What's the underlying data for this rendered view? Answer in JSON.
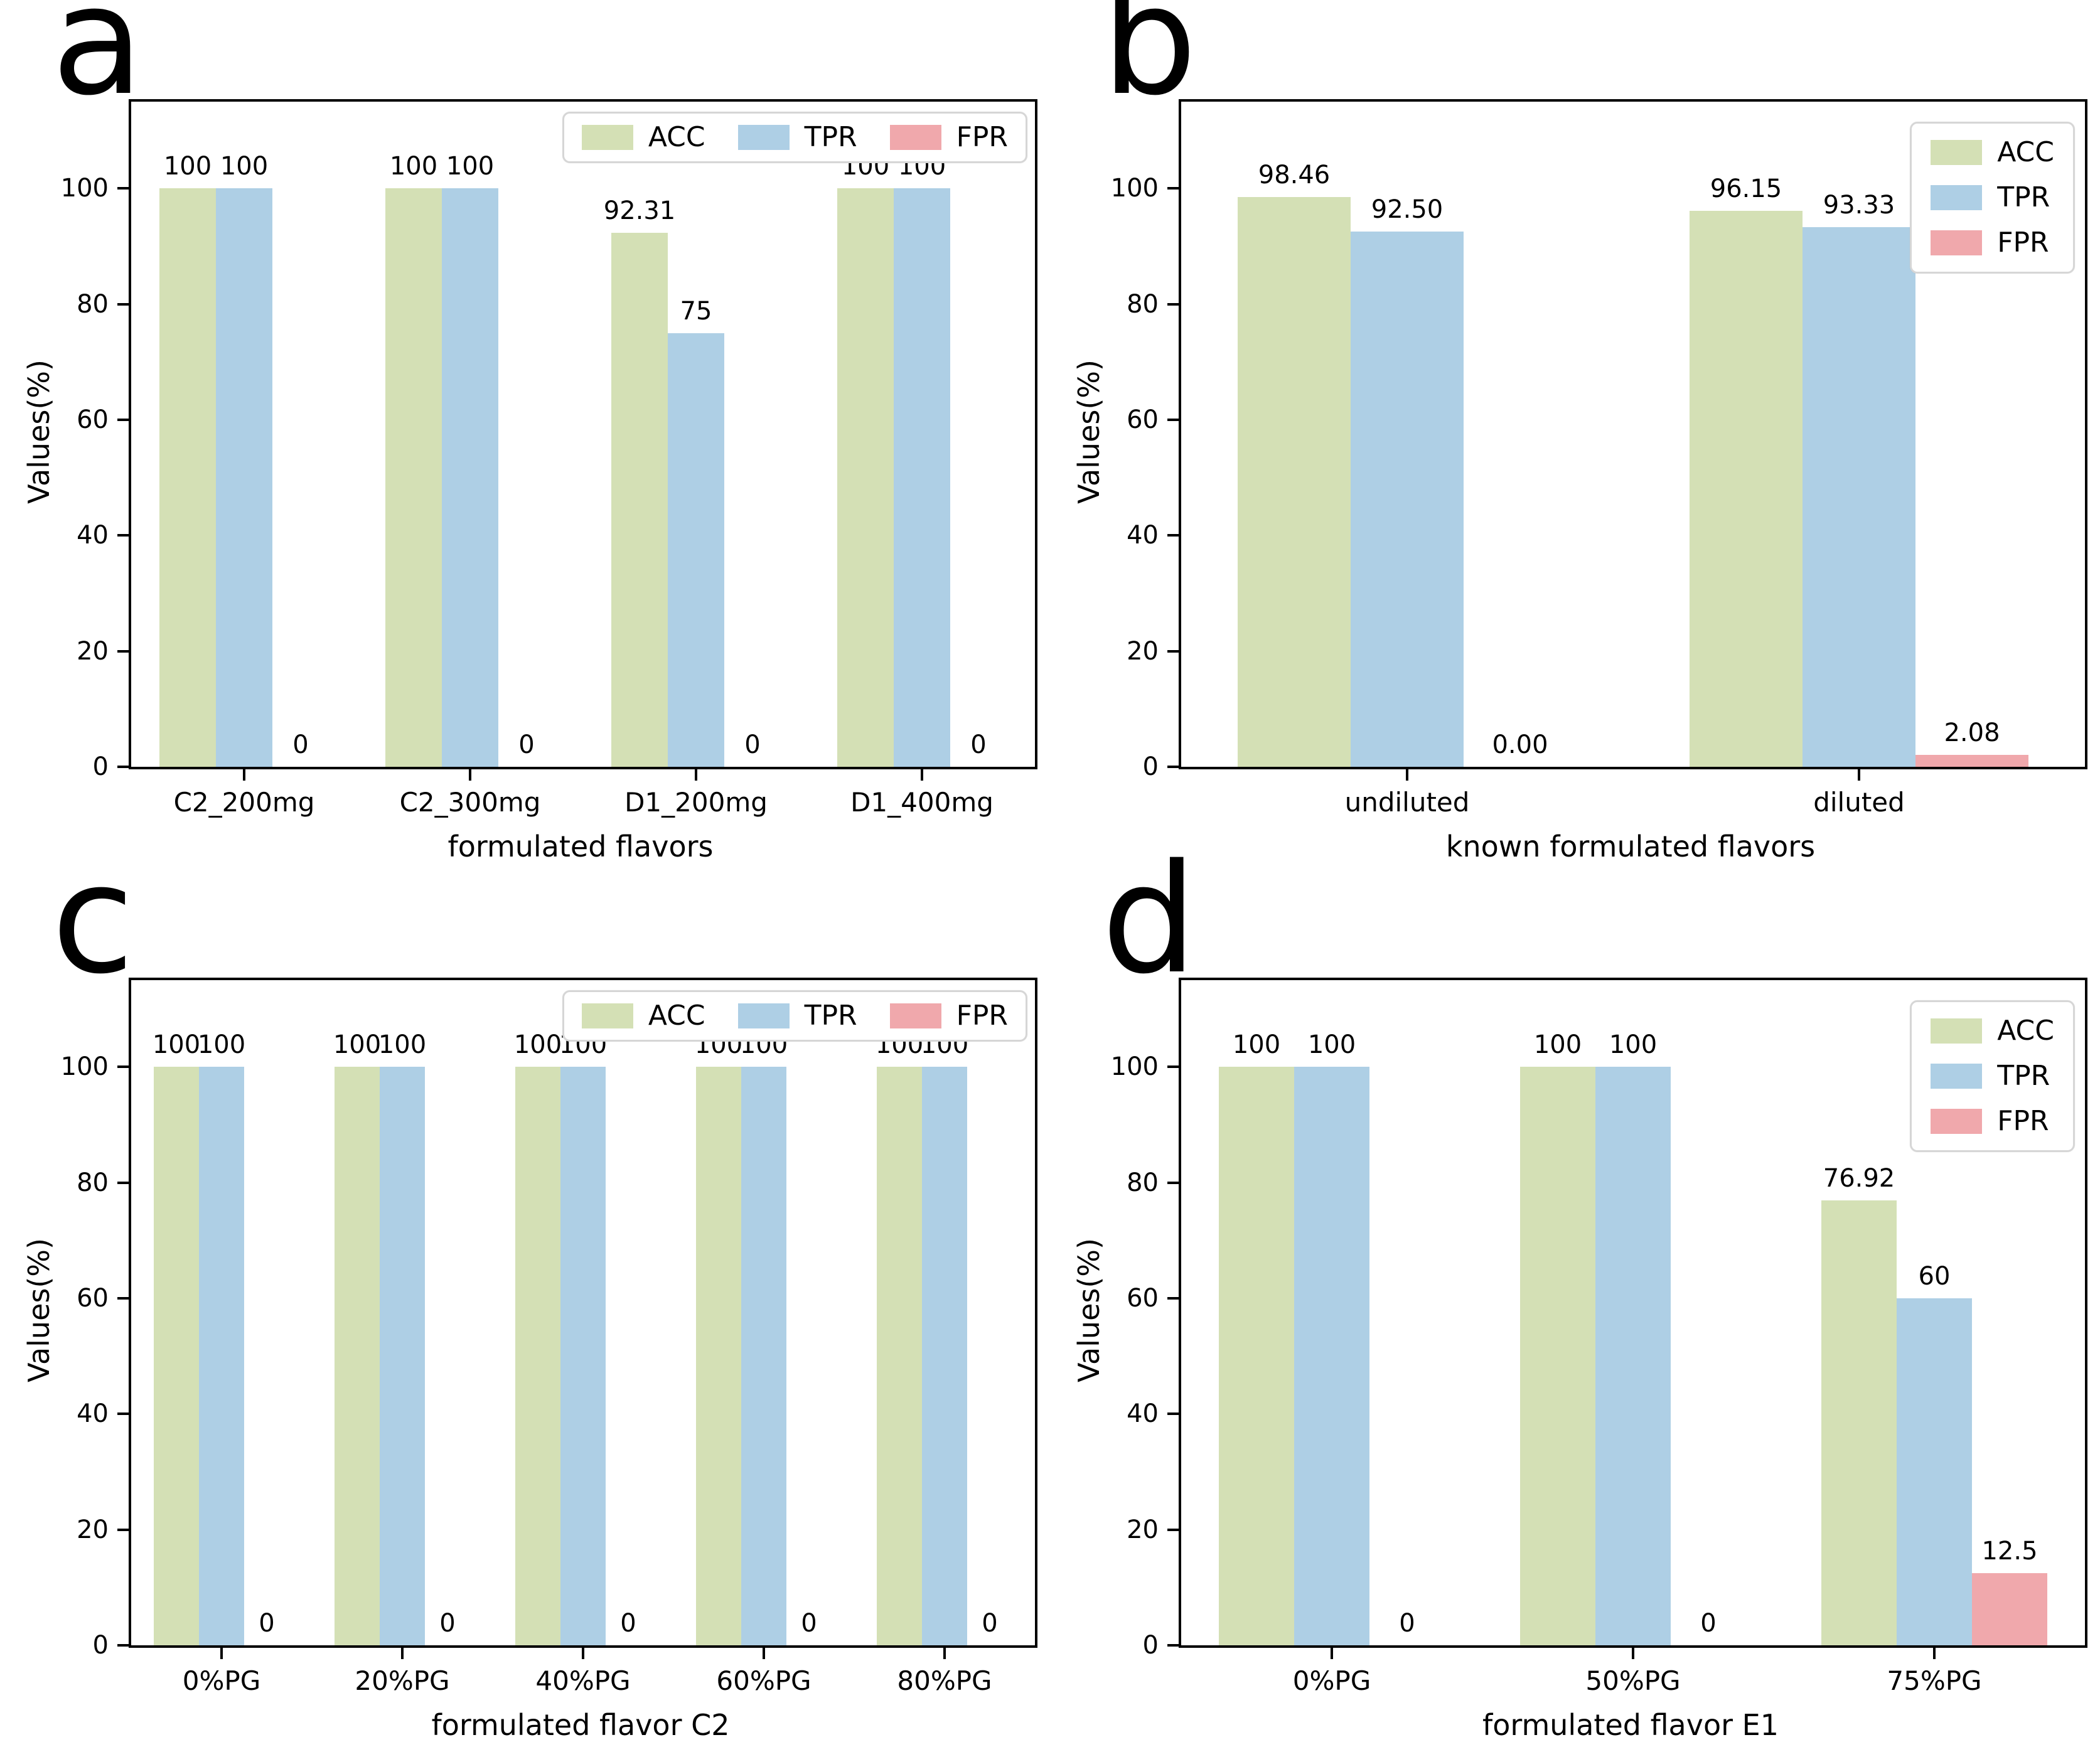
{
  "colors": {
    "ACC": "#d4e0b5",
    "TPR": "#aecfe5",
    "FPR": "#f0a8ac",
    "spine": "#000000",
    "text": "#000000",
    "legend_border": "#d6d6d6",
    "background": "#ffffff"
  },
  "chart_data": [
    {
      "panel_label": "a",
      "type": "bar",
      "title": "",
      "xlabel": "formulated flavors",
      "ylabel": "Values(%)",
      "ylim": [
        0,
        115
      ],
      "yticks": [
        0,
        20,
        40,
        60,
        80,
        100
      ],
      "grid": false,
      "legend": {
        "orientation": "horizontal",
        "position": "upper-right",
        "entries": [
          "ACC",
          "TPR",
          "FPR"
        ]
      },
      "categories": [
        "C2_200mg",
        "C2_300mg",
        "D1_200mg",
        "D1_400mg"
      ],
      "series": [
        {
          "name": "ACC",
          "values": [
            100,
            100,
            92.31,
            100
          ],
          "labels": [
            "100",
            "100",
            "92.31",
            "100"
          ]
        },
        {
          "name": "TPR",
          "values": [
            100,
            100,
            75,
            100
          ],
          "labels": [
            "100",
            "100",
            "75",
            "100"
          ]
        },
        {
          "name": "FPR",
          "values": [
            0,
            0,
            0,
            0
          ],
          "labels": [
            "0",
            "0",
            "0",
            "0"
          ]
        }
      ]
    },
    {
      "panel_label": "b",
      "type": "bar",
      "title": "",
      "xlabel": "known formulated flavors",
      "ylabel": "Values(%)",
      "ylim": [
        0,
        115
      ],
      "yticks": [
        0,
        20,
        40,
        60,
        80,
        100
      ],
      "grid": false,
      "legend": {
        "orientation": "vertical",
        "position": "upper-right",
        "entries": [
          "ACC",
          "TPR",
          "FPR"
        ]
      },
      "categories": [
        "undiluted",
        "diluted"
      ],
      "series": [
        {
          "name": "ACC",
          "values": [
            98.46,
            96.15
          ],
          "labels": [
            "98.46",
            "96.15"
          ]
        },
        {
          "name": "TPR",
          "values": [
            92.5,
            93.33
          ],
          "labels": [
            "92.50",
            "93.33"
          ]
        },
        {
          "name": "FPR",
          "values": [
            0,
            2.08
          ],
          "labels": [
            "0.00",
            "2.08"
          ]
        }
      ]
    },
    {
      "panel_label": "c",
      "type": "bar",
      "title": "",
      "xlabel": "formulated flavor C2",
      "ylabel": "Values(%)",
      "ylim": [
        0,
        115
      ],
      "yticks": [
        0,
        20,
        40,
        60,
        80,
        100
      ],
      "grid": false,
      "legend": {
        "orientation": "horizontal",
        "position": "upper-right",
        "entries": [
          "ACC",
          "TPR",
          "FPR"
        ]
      },
      "categories": [
        "0%PG",
        "20%PG",
        "40%PG",
        "60%PG",
        "80%PG"
      ],
      "series": [
        {
          "name": "ACC",
          "values": [
            100,
            100,
            100,
            100,
            100
          ],
          "labels": [
            "100",
            "100",
            "100",
            "100",
            "100"
          ]
        },
        {
          "name": "TPR",
          "values": [
            100,
            100,
            100,
            100,
            100
          ],
          "labels": [
            "100",
            "100",
            "100",
            "100",
            "100"
          ]
        },
        {
          "name": "FPR",
          "values": [
            0,
            0,
            0,
            0,
            0
          ],
          "labels": [
            "0",
            "0",
            "0",
            "0",
            "0"
          ]
        }
      ]
    },
    {
      "panel_label": "d",
      "type": "bar",
      "title": "",
      "xlabel": "formulated flavor E1",
      "ylabel": "Values(%)",
      "ylim": [
        0,
        115
      ],
      "yticks": [
        0,
        20,
        40,
        60,
        80,
        100
      ],
      "grid": false,
      "legend": {
        "orientation": "vertical",
        "position": "upper-right",
        "entries": [
          "ACC",
          "TPR",
          "FPR"
        ]
      },
      "categories": [
        "0%PG",
        "50%PG",
        "75%PG"
      ],
      "series": [
        {
          "name": "ACC",
          "values": [
            100,
            100,
            76.92
          ],
          "labels": [
            "100",
            "100",
            "76.92"
          ]
        },
        {
          "name": "TPR",
          "values": [
            100,
            100,
            60
          ],
          "labels": [
            "100",
            "100",
            "60"
          ]
        },
        {
          "name": "FPR",
          "values": [
            0,
            0,
            12.5
          ],
          "labels": [
            "0",
            "0",
            "12.5"
          ]
        }
      ]
    }
  ]
}
